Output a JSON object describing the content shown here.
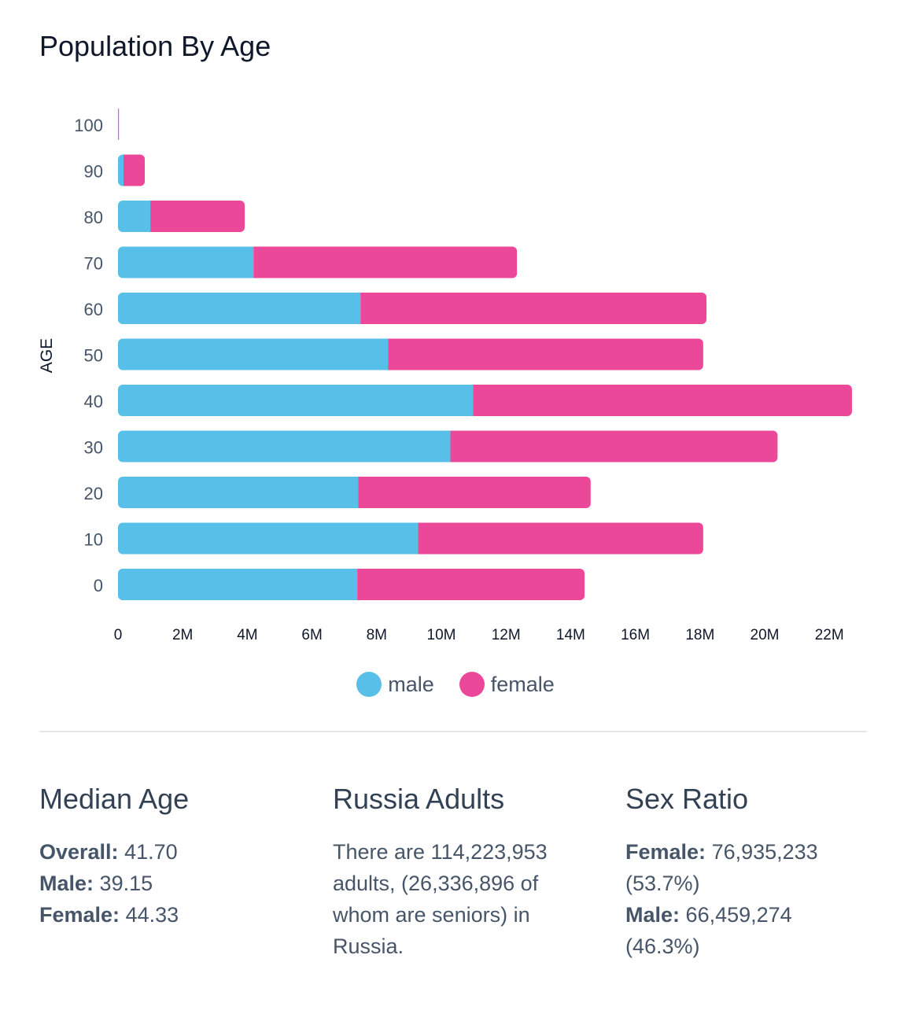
{
  "title": "Population By Age",
  "chart_data": {
    "type": "bar",
    "orientation": "horizontal",
    "stacked": true,
    "ylabel": "AGE",
    "xlabel": "",
    "categories": [
      "100",
      "90",
      "80",
      "70",
      "60",
      "50",
      "40",
      "30",
      "20",
      "10",
      "0"
    ],
    "series": [
      {
        "name": "male",
        "color": "#58c0e8",
        "values": [
          0.01,
          0.17,
          1.0,
          4.19,
          7.5,
          8.35,
          10.98,
          10.28,
          7.43,
          9.28,
          7.4
        ]
      },
      {
        "name": "female",
        "color": "#ec4899",
        "values": [
          0.02,
          0.66,
          2.92,
          8.15,
          10.7,
          9.75,
          11.72,
          10.12,
          7.19,
          8.82,
          7.03
        ]
      }
    ],
    "units": "millions",
    "xlim": [
      0,
      22.5
    ],
    "xticks": [
      "0",
      "2M",
      "4M",
      "6M",
      "8M",
      "10M",
      "12M",
      "14M",
      "16M",
      "18M",
      "20M",
      "22M"
    ],
    "legend": "bottom",
    "grid": false
  },
  "stats": {
    "median": {
      "title": "Median Age",
      "rows": [
        {
          "label": "Overall:",
          "value": "41.70"
        },
        {
          "label": "Male:",
          "value": "39.15"
        },
        {
          "label": "Female:",
          "value": "44.33"
        }
      ]
    },
    "adults": {
      "title": "Russia Adults",
      "text": "There are 114,223,953 adults, (26,336,896 of whom are seniors) in Russia."
    },
    "sex": {
      "title": "Sex Ratio",
      "rows": [
        {
          "label": "Female:",
          "value": "76,935,233 (53.7%)"
        },
        {
          "label": "Male:",
          "value": "66,459,274 (46.3%)"
        }
      ]
    }
  }
}
